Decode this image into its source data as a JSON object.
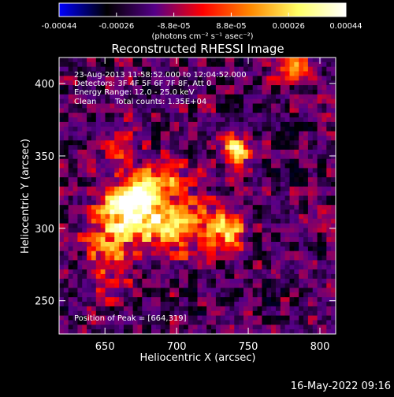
{
  "chart_data": {
    "type": "heatmap",
    "title": "Reconstructed RHESSI Image",
    "xlabel": "Heliocentric X (arcsec)",
    "ylabel": "Heliocentric Y (arcsec)",
    "xlim": [
      618,
      811
    ],
    "ylim": [
      227,
      418
    ],
    "x_ticks": [
      650,
      700,
      750,
      800
    ],
    "y_ticks": [
      250,
      300,
      350,
      400
    ],
    "colorbar": {
      "ticks": [
        "-0.00044",
        "-0.00026",
        "-8.8e-05",
        "8.8e-05",
        "0.00026",
        "0.00044"
      ],
      "range": [
        -0.00044,
        0.00044
      ],
      "unit_label": "(photons cm⁻² s⁻¹ asec⁻²)",
      "colors": [
        "#0000ff",
        "#000000",
        "#550088",
        "#ff0000",
        "#ff8800",
        "#ffff66",
        "#ffffff"
      ]
    },
    "annotations": {
      "time_range": "23-Aug-2013 11:58:52.000 to 12:04:52.000",
      "detectors": "Detectors: 3F 4F 5F 6F 7F 8F, Att 0",
      "energy": "Energy Range: 12.0 - 25.0 keV",
      "clean": "Clean",
      "counts": "Total counts: 1.35E+04",
      "peak": "Position of Peak = [664,319]"
    },
    "sources": [
      {
        "x": 670,
        "y": 318,
        "sx": 12,
        "sy": 12,
        "amp": 1.0
      },
      {
        "x": 700,
        "y": 300,
        "sx": 20,
        "sy": 12,
        "amp": 0.85
      },
      {
        "x": 742,
        "y": 355,
        "sx": 7,
        "sy": 7,
        "amp": 0.9
      },
      {
        "x": 652,
        "y": 290,
        "sx": 12,
        "sy": 20,
        "amp": 0.6
      },
      {
        "x": 690,
        "y": 335,
        "sx": 14,
        "sy": 9,
        "amp": 0.55
      },
      {
        "x": 785,
        "y": 412,
        "sx": 10,
        "sy": 8,
        "amp": 0.5
      },
      {
        "x": 738,
        "y": 298,
        "sx": 9,
        "sy": 9,
        "amp": 0.55
      },
      {
        "x": 660,
        "y": 355,
        "sx": 9,
        "sy": 9,
        "amp": 0.35
      }
    ]
  },
  "footer": {
    "date": "16-May-2022 09:16"
  }
}
